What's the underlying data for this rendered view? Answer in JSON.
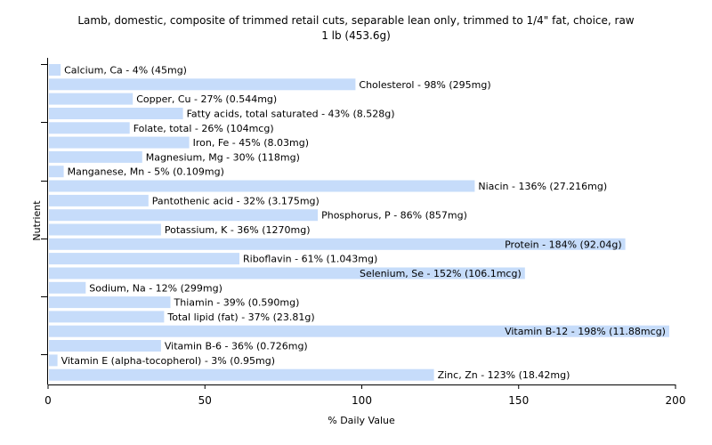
{
  "chart_data": {
    "type": "bar",
    "orientation": "horizontal",
    "title": "Lamb, domestic, composite of trimmed retail cuts, separable lean only, trimmed to 1/4\" fat, choice, raw",
    "subtitle": "1 lb (453.6g)",
    "xlabel": "% Daily Value",
    "ylabel": "Nutrient",
    "xlim": [
      0,
      200
    ],
    "xticks": [
      "0",
      "50",
      "100",
      "150",
      "200"
    ],
    "bar_color": "#c6dcfa",
    "grid": false,
    "bars": [
      {
        "label": "Calcium, Ca - 4% (45mg)",
        "value": 4
      },
      {
        "label": "Cholesterol - 98% (295mg)",
        "value": 98
      },
      {
        "label": "Copper, Cu - 27% (0.544mg)",
        "value": 27
      },
      {
        "label": "Fatty acids, total saturated - 43% (8.528g)",
        "value": 43
      },
      {
        "label": "Folate, total - 26% (104mcg)",
        "value": 26
      },
      {
        "label": "Iron, Fe - 45% (8.03mg)",
        "value": 45
      },
      {
        "label": "Magnesium, Mg - 30% (118mg)",
        "value": 30
      },
      {
        "label": "Manganese, Mn - 5% (0.109mg)",
        "value": 5
      },
      {
        "label": "Niacin - 136% (27.216mg)",
        "value": 136
      },
      {
        "label": "Pantothenic acid - 32% (3.175mg)",
        "value": 32
      },
      {
        "label": "Phosphorus, P - 86% (857mg)",
        "value": 86
      },
      {
        "label": "Potassium, K - 36% (1270mg)",
        "value": 36
      },
      {
        "label": "Protein - 184% (92.04g)",
        "value": 184
      },
      {
        "label": "Riboflavin - 61% (1.043mg)",
        "value": 61
      },
      {
        "label": "Selenium, Se - 152% (106.1mcg)",
        "value": 152
      },
      {
        "label": "Sodium, Na - 12% (299mg)",
        "value": 12
      },
      {
        "label": "Thiamin - 39% (0.590mg)",
        "value": 39
      },
      {
        "label": "Total lipid (fat) - 37% (23.81g)",
        "value": 37
      },
      {
        "label": "Vitamin B-12 - 198% (11.88mcg)",
        "value": 198
      },
      {
        "label": "Vitamin B-6 - 36% (0.726mg)",
        "value": 36
      },
      {
        "label": "Vitamin E (alpha-tocopherol) - 3% (0.95mg)",
        "value": 3
      },
      {
        "label": "Zinc, Zn - 123% (18.42mg)",
        "value": 123
      }
    ]
  }
}
